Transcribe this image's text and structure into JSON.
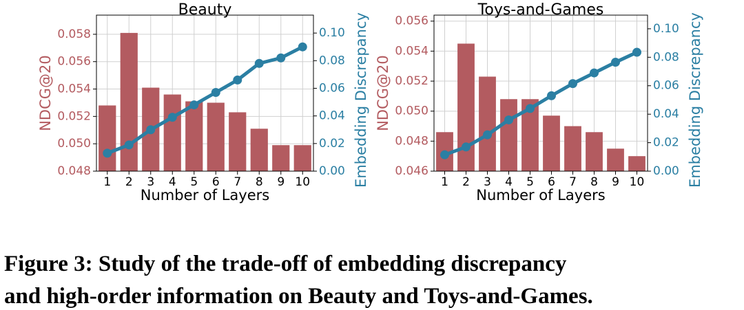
{
  "chart_data": [
    {
      "type": "bar_line",
      "title": "Beauty",
      "xlabel": "Number of Layers",
      "ylabel": "NDCG@20",
      "y2label": "Embedding Discrepancy",
      "categories": [
        "1",
        "2",
        "3",
        "4",
        "5",
        "6",
        "7",
        "8",
        "9",
        "10"
      ],
      "series": [
        {
          "name": "NDCG@20",
          "color": "#b35b60",
          "values": [
            0.0528,
            0.0581,
            0.0541,
            0.0536,
            0.0531,
            0.053,
            0.0523,
            0.0511,
            0.0499,
            0.0499
          ]
        },
        {
          "name": "Embedding Discrepancy",
          "color": "#2b7fa3",
          "axis": "y2",
          "values": [
            0.013,
            0.019,
            0.03,
            0.039,
            0.048,
            0.057,
            0.066,
            0.078,
            0.082,
            0.09
          ]
        }
      ],
      "ylim": [
        0.048,
        0.0594
      ],
      "yticks": [
        0.048,
        {
          "value": 0.05,
          "label": "0.050"
        },
        0.052,
        0.054,
        0.056,
        0.058
      ],
      "y2lim": [
        0,
        0.113
      ],
      "y2ticks": [
        {
          "value": 0,
          "label": "0.00"
        },
        0.02,
        0.04,
        0.06,
        0.08,
        {
          "value": 0.1,
          "label": "0.10"
        }
      ],
      "grid": true
    },
    {
      "type": "bar_line",
      "title": "Toys-and-Games",
      "xlabel": "Number of Layers",
      "ylabel": "NDCG@20",
      "y2label": "Embedding Discrepancy",
      "categories": [
        "1",
        "2",
        "3",
        "4",
        "5",
        "6",
        "7",
        "8",
        "9",
        "10"
      ],
      "series": [
        {
          "name": "NDCG@20",
          "color": "#b35b60",
          "values": [
            0.0486,
            0.0545,
            0.0523,
            0.0508,
            0.0508,
            0.0497,
            0.049,
            0.0486,
            0.0475,
            0.047
          ]
        },
        {
          "name": "Embedding Discrepancy",
          "color": "#2b7fa3",
          "axis": "y2",
          "values": [
            0.0115,
            0.017,
            0.0255,
            0.036,
            0.044,
            0.053,
            0.0615,
            0.069,
            0.0765,
            0.0835
          ]
        }
      ],
      "ylim": [
        0.046,
        0.0564
      ],
      "yticks": [
        0.046,
        0.048,
        {
          "value": 0.05,
          "label": "0.050"
        },
        0.052,
        0.054,
        0.056
      ],
      "y2lim": [
        0,
        0.1096
      ],
      "y2ticks": [
        {
          "value": 0,
          "label": "0.00"
        },
        0.02,
        0.04,
        0.06,
        0.08,
        {
          "value": 0.1,
          "label": "0.10"
        }
      ],
      "grid": true
    }
  ],
  "caption": [
    "Figure 3: Study of the trade-off of embedding discrepancy",
    "and high-order information on Beauty and Toys-and-Games."
  ]
}
